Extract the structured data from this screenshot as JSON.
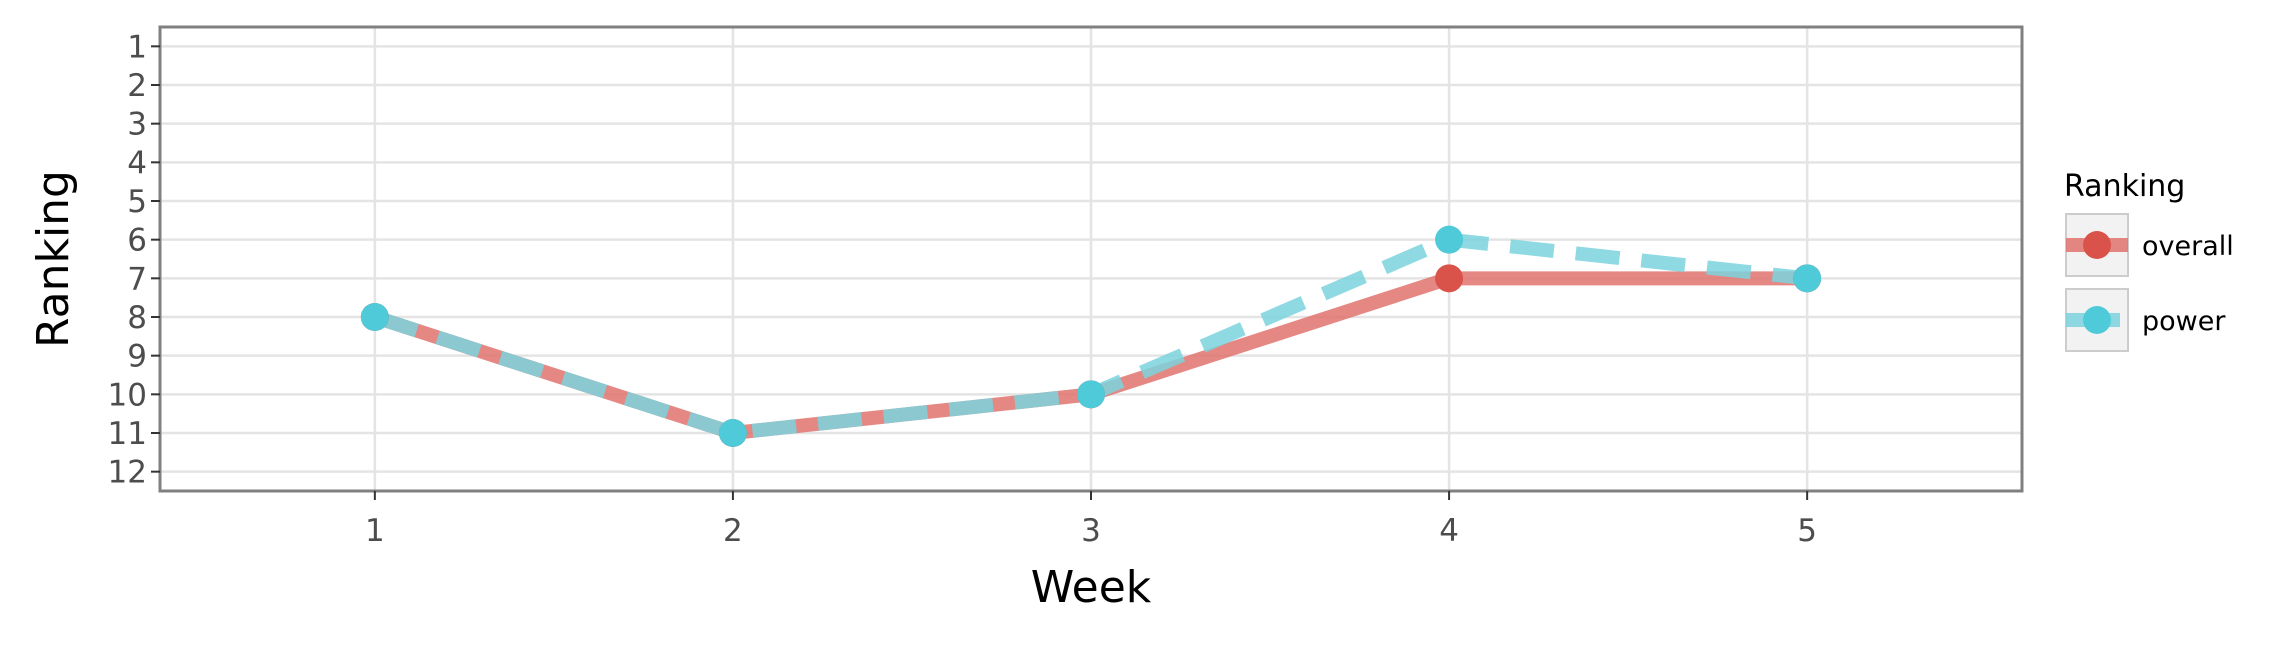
{
  "chart_data": {
    "type": "line",
    "title": "",
    "xlabel": "Week",
    "ylabel": "Ranking",
    "x": [
      1,
      2,
      3,
      4,
      5
    ],
    "x_ticks": [
      "1",
      "2",
      "3",
      "4",
      "5"
    ],
    "y_ticks": [
      "1",
      "2",
      "3",
      "4",
      "5",
      "6",
      "7",
      "8",
      "9",
      "10",
      "11",
      "12"
    ],
    "xlim": [
      0.4,
      5.6
    ],
    "ylim": [
      12.5,
      0.5
    ],
    "y_reversed": true,
    "grid": true,
    "legend": {
      "title": "Ranking",
      "placement": "right"
    },
    "series": [
      {
        "name": "overall",
        "values": [
          8,
          11,
          10,
          7,
          7
        ],
        "color": "#E0736F",
        "point_color": "#D9534B",
        "linestyle": "solid"
      },
      {
        "name": "power",
        "values": [
          8,
          11,
          10,
          6,
          7
        ],
        "color": "#7BD3DD",
        "point_color": "#4FCAD8",
        "linestyle": "dashed"
      }
    ]
  }
}
